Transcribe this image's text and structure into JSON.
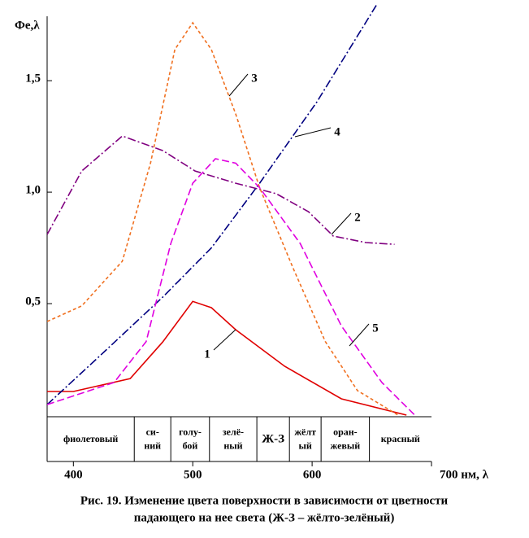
{
  "chart_data": {
    "type": "line",
    "ylabel": "Фe,λ",
    "xlim": [
      378,
      700
    ],
    "ylim": [
      0,
      1.84
    ],
    "xticks": [
      400,
      500,
      600,
      {
        "value": 700,
        "label": "700 нм, λ"
      }
    ],
    "yticks": [
      {
        "value": 0.5,
        "label": "0,5"
      },
      {
        "value": 1,
        "label": "1,0"
      },
      {
        "value": 1.5,
        "label": "1,5"
      }
    ],
    "series": [
      {
        "name": "1",
        "color": "#e00000",
        "dash": "",
        "x": [
          378,
          400,
          447.6,
          474.8,
          500,
          515.6,
          536,
          577,
          624.5,
          679
        ],
        "values": [
          0.106,
          0.106,
          0.164,
          0.328,
          0.51,
          0.482,
          0.383,
          0.219,
          0.073,
          0
        ]
      },
      {
        "name": "2",
        "color": "#800080",
        "dash": "10 3 2 3",
        "x": [
          378,
          407,
          441,
          475,
          502,
          536,
          570,
          597,
          617.7,
          645,
          669
        ],
        "values": [
          0.81,
          1.095,
          1.252,
          1.186,
          1.095,
          1.04,
          0.993,
          0.912,
          0.803,
          0.774,
          0.766
        ]
      },
      {
        "name": "3",
        "color": "#f07020",
        "dash": "4 3",
        "x": [
          378,
          407,
          441,
          464.6,
          485,
          500,
          515.6,
          536,
          556,
          584,
          611,
          638,
          672
        ],
        "values": [
          0.42,
          0.49,
          0.69,
          1.13,
          1.64,
          1.76,
          1.64,
          1.35,
          1.02,
          0.66,
          0.33,
          0.11,
          0
        ]
      },
      {
        "name": "4",
        "color": "#000080",
        "dash": "10 3 2 3",
        "x": [
          378,
          420,
          475,
          515.6,
          556,
          604,
          654
        ],
        "values": [
          0.047,
          0.255,
          0.53,
          0.75,
          1.04,
          1.405,
          1.84
        ]
      },
      {
        "name": "5",
        "color": "#e000e0",
        "dash": "9 4",
        "x": [
          378,
          434,
          461,
          481.6,
          500,
          519,
          536,
          556,
          590,
          624.5,
          658.5,
          686
        ],
        "values": [
          0.047,
          0.146,
          0.33,
          0.77,
          1.04,
          1.15,
          1.13,
          1.02,
          0.77,
          0.4,
          0.146,
          0
        ]
      }
    ],
    "bands": [
      {
        "lines": [
          "фиолетовый"
        ],
        "from": 378,
        "to": 451
      },
      {
        "lines": [
          "си-",
          "ний"
        ],
        "from": 451,
        "to": 481.6
      },
      {
        "lines": [
          "голу-",
          "бой"
        ],
        "from": 481.6,
        "to": 514
      },
      {
        "lines": [
          "зелё-",
          "ный"
        ],
        "from": 514,
        "to": 553.7
      },
      {
        "lines": [
          "Ж-З"
        ],
        "from": 553.7,
        "to": 581
      },
      {
        "lines": [
          "жёлт",
          "ый"
        ],
        "from": 581,
        "to": 607.5
      },
      {
        "lines": [
          "оран-",
          "жевый"
        ],
        "from": 607.5,
        "to": 648
      },
      {
        "lines": [
          "красный"
        ],
        "from": 648,
        "to": 700
      }
    ],
    "caption": [
      "Рис. 19. Изменение цвета поверхности в зависимости от цветности",
      "падающего на нее света (Ж-З – жёлто-зелёный)"
    ]
  }
}
